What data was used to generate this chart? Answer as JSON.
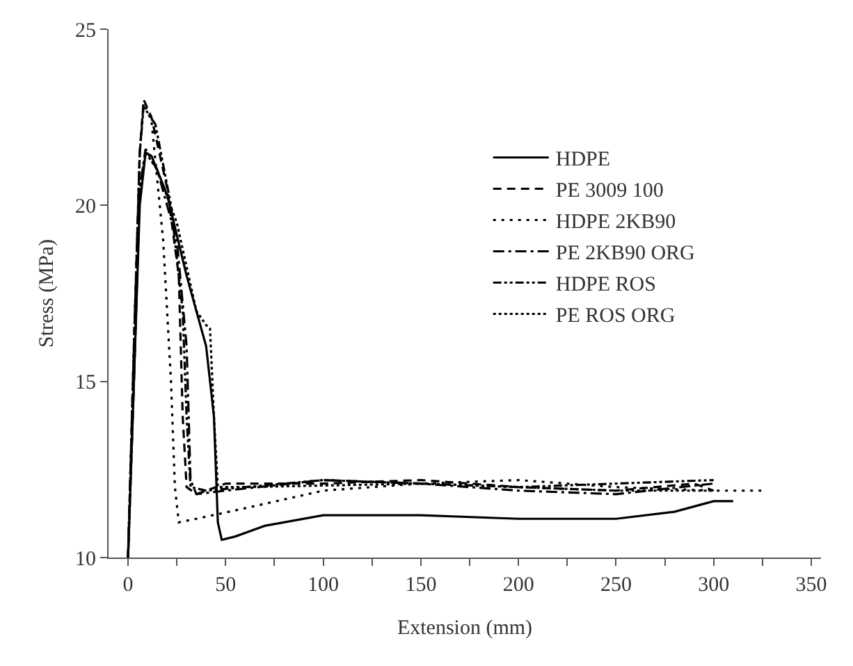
{
  "chart_data": {
    "type": "line",
    "xlabel": "Extension (mm)",
    "ylabel": "Stress (MPa)",
    "xlim": [
      -10,
      355
    ],
    "ylim": [
      10,
      25
    ],
    "xticks": [
      0,
      {
        "value": 25,
        "label": null
      },
      50,
      {
        "value": 75,
        "label": null
      },
      100,
      {
        "value": 125,
        "label": null
      },
      150,
      {
        "value": 175,
        "label": null
      },
      200,
      {
        "value": 225,
        "label": null
      },
      250,
      {
        "value": 275,
        "label": null
      },
      300,
      {
        "value": 325,
        "label": null
      },
      350
    ],
    "yticks": [
      10,
      15,
      20,
      25
    ],
    "grid": false,
    "legend": "top right",
    "marker": "none",
    "series": [
      {
        "name": "HDPE",
        "color": "#000000",
        "line_style": "solid",
        "x": [
          0,
          3,
          6,
          9,
          12,
          20,
          30,
          40,
          44,
          46,
          48,
          55,
          70,
          100,
          150,
          200,
          250,
          280,
          300,
          310
        ],
        "values": [
          10,
          15,
          20,
          21.5,
          21.4,
          20.3,
          18,
          16,
          14,
          11,
          10.5,
          10.6,
          10.9,
          11.2,
          11.2,
          11.1,
          11.1,
          11.3,
          11.6,
          11.6
        ]
      },
      {
        "name": "PE 3009 100",
        "color": "#000000",
        "line_style": "dashed",
        "x": [
          0,
          3,
          6,
          8,
          12,
          20,
          26,
          28,
          30,
          35,
          50,
          100,
          150,
          200,
          250,
          290,
          300
        ],
        "values": [
          10,
          16,
          21.5,
          23,
          22.5,
          20.5,
          18,
          14,
          12,
          11.8,
          12.1,
          12.1,
          12.2,
          12,
          11.9,
          12.1,
          11.9
        ]
      },
      {
        "name": "HDPE 2KB90",
        "color": "#000000",
        "line_style": "dotted",
        "x": [
          0,
          3,
          6,
          8,
          12,
          18,
          22,
          24,
          26,
          35,
          60,
          100,
          150,
          200,
          250,
          300,
          325
        ],
        "values": [
          10,
          16,
          21.5,
          22.9,
          22.4,
          19,
          15,
          12,
          11,
          11.1,
          11.4,
          11.9,
          12.1,
          12.2,
          12,
          11.9,
          11.9
        ]
      },
      {
        "name": "PE 2KB90 ORG",
        "color": "#000000",
        "line_style": "dashdot",
        "x": [
          0,
          3,
          6,
          9,
          15,
          25,
          30,
          32,
          35,
          50,
          100,
          150,
          200,
          250,
          300
        ],
        "values": [
          10,
          15,
          20.5,
          21.6,
          21,
          19,
          16,
          12.2,
          11.8,
          11.9,
          12.2,
          12.1,
          11.9,
          11.8,
          12.1
        ]
      },
      {
        "name": "HDPE ROS",
        "color": "#000000",
        "line_style": "longdashdot",
        "x": [
          0,
          3,
          6,
          8,
          14,
          22,
          28,
          30,
          32,
          40,
          100,
          200,
          300
        ],
        "values": [
          10,
          16,
          21.5,
          22.8,
          22.3,
          20,
          17,
          14,
          12,
          11.9,
          12.2,
          12,
          12.2
        ]
      },
      {
        "name": "PE ROS ORG",
        "color": "#000000",
        "line_style": "densedot",
        "x": [
          0,
          3,
          6,
          9,
          15,
          25,
          35,
          40,
          42,
          44,
          46,
          60,
          150,
          250,
          300
        ],
        "values": [
          10,
          15,
          20.5,
          21.5,
          21,
          19.5,
          17,
          16.6,
          16.5,
          14,
          12,
          12,
          12.1,
          11.9,
          11.9
        ]
      }
    ]
  }
}
